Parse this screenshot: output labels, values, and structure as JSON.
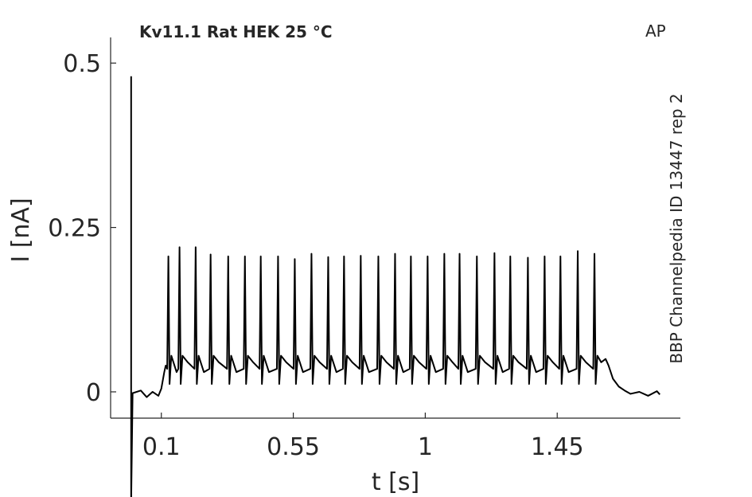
{
  "chart_data": {
    "type": "line",
    "title": "Kv11.1  Rat  HEK  25 °C",
    "annotation": "AP",
    "side_label": "BBP Channelpedia ID 13447 rep 2",
    "x_label": "t [s]",
    "y_label": "I [nA]",
    "xlim": [
      -0.073,
      1.87
    ],
    "ylim": [
      -0.04,
      0.539
    ],
    "xticks": [
      0.1,
      0.55,
      1,
      1.45
    ],
    "yticks": [
      0,
      0.25,
      0.5
    ],
    "color": "#000000",
    "x": [
      -0.003,
      -0.003,
      0.002,
      0.03,
      0.05,
      0.07,
      0.09,
      0.1,
      0.11,
      0.115,
      0.12,
      0.124,
      0.128,
      0.134,
      0.152,
      0.158,
      0.162,
      0.166,
      0.172,
      0.19,
      0.213,
      0.217,
      0.221,
      0.227,
      0.245,
      0.264,
      0.268,
      0.272,
      0.278,
      0.296,
      0.324,
      0.328,
      0.332,
      0.338,
      0.356,
      0.381,
      0.385,
      0.389,
      0.395,
      0.413,
      0.435,
      0.439,
      0.443,
      0.449,
      0.467,
      0.494,
      0.498,
      0.502,
      0.508,
      0.526,
      0.551,
      0.555,
      0.559,
      0.565,
      0.583,
      0.608,
      0.612,
      0.616,
      0.622,
      0.64,
      0.665,
      0.669,
      0.673,
      0.679,
      0.697,
      0.719,
      0.723,
      0.727,
      0.733,
      0.751,
      0.776,
      0.78,
      0.784,
      0.79,
      0.808,
      0.836,
      0.84,
      0.844,
      0.85,
      0.868,
      0.893,
      0.897,
      0.901,
      0.907,
      0.925,
      0.947,
      0.951,
      0.955,
      0.961,
      0.979,
      1.004,
      1.008,
      1.012,
      1.018,
      1.036,
      1.061,
      1.065,
      1.069,
      1.075,
      1.093,
      1.113,
      1.117,
      1.121,
      1.127,
      1.145,
      1.172,
      1.176,
      1.18,
      1.186,
      1.204,
      1.232,
      1.236,
      1.24,
      1.246,
      1.264,
      1.286,
      1.29,
      1.294,
      1.3,
      1.318,
      1.346,
      1.35,
      1.354,
      1.36,
      1.378,
      1.403,
      1.407,
      1.411,
      1.417,
      1.435,
      1.457,
      1.461,
      1.465,
      1.471,
      1.489,
      1.516,
      1.52,
      1.524,
      1.53,
      1.548,
      1.573,
      1.577,
      1.581,
      1.587,
      1.6,
      1.615,
      1.625,
      1.64,
      1.66,
      1.68,
      1.7,
      1.73,
      1.76,
      1.79,
      1.8
    ],
    "values": [
      0.48,
      -0.17,
      -0.002,
      0.002,
      -0.008,
      0.0,
      -0.006,
      0.005,
      0.03,
      0.04,
      0.035,
      0.206,
      0.012,
      0.055,
      0.03,
      0.035,
      0.22,
      0.012,
      0.055,
      0.045,
      0.035,
      0.22,
      0.012,
      0.055,
      0.03,
      0.035,
      0.209,
      0.012,
      0.055,
      0.045,
      0.035,
      0.206,
      0.012,
      0.055,
      0.03,
      0.035,
      0.206,
      0.012,
      0.055,
      0.045,
      0.035,
      0.206,
      0.012,
      0.055,
      0.03,
      0.035,
      0.206,
      0.012,
      0.055,
      0.045,
      0.035,
      0.202,
      0.012,
      0.055,
      0.03,
      0.035,
      0.21,
      0.012,
      0.055,
      0.045,
      0.035,
      0.205,
      0.012,
      0.055,
      0.03,
      0.035,
      0.206,
      0.012,
      0.055,
      0.045,
      0.035,
      0.207,
      0.012,
      0.055,
      0.03,
      0.035,
      0.206,
      0.012,
      0.055,
      0.045,
      0.035,
      0.21,
      0.012,
      0.055,
      0.03,
      0.035,
      0.206,
      0.012,
      0.055,
      0.045,
      0.035,
      0.206,
      0.012,
      0.055,
      0.03,
      0.035,
      0.21,
      0.012,
      0.055,
      0.045,
      0.035,
      0.21,
      0.012,
      0.055,
      0.03,
      0.035,
      0.206,
      0.012,
      0.055,
      0.045,
      0.035,
      0.211,
      0.012,
      0.055,
      0.03,
      0.035,
      0.206,
      0.012,
      0.055,
      0.045,
      0.035,
      0.204,
      0.012,
      0.055,
      0.03,
      0.035,
      0.206,
      0.012,
      0.055,
      0.045,
      0.035,
      0.206,
      0.012,
      0.055,
      0.03,
      0.035,
      0.214,
      0.012,
      0.055,
      0.045,
      0.035,
      0.21,
      0.012,
      0.055,
      0.045,
      0.05,
      0.04,
      0.02,
      0.008,
      0.002,
      -0.003,
      0.0,
      -0.006,
      0.001,
      -0.004
    ]
  }
}
